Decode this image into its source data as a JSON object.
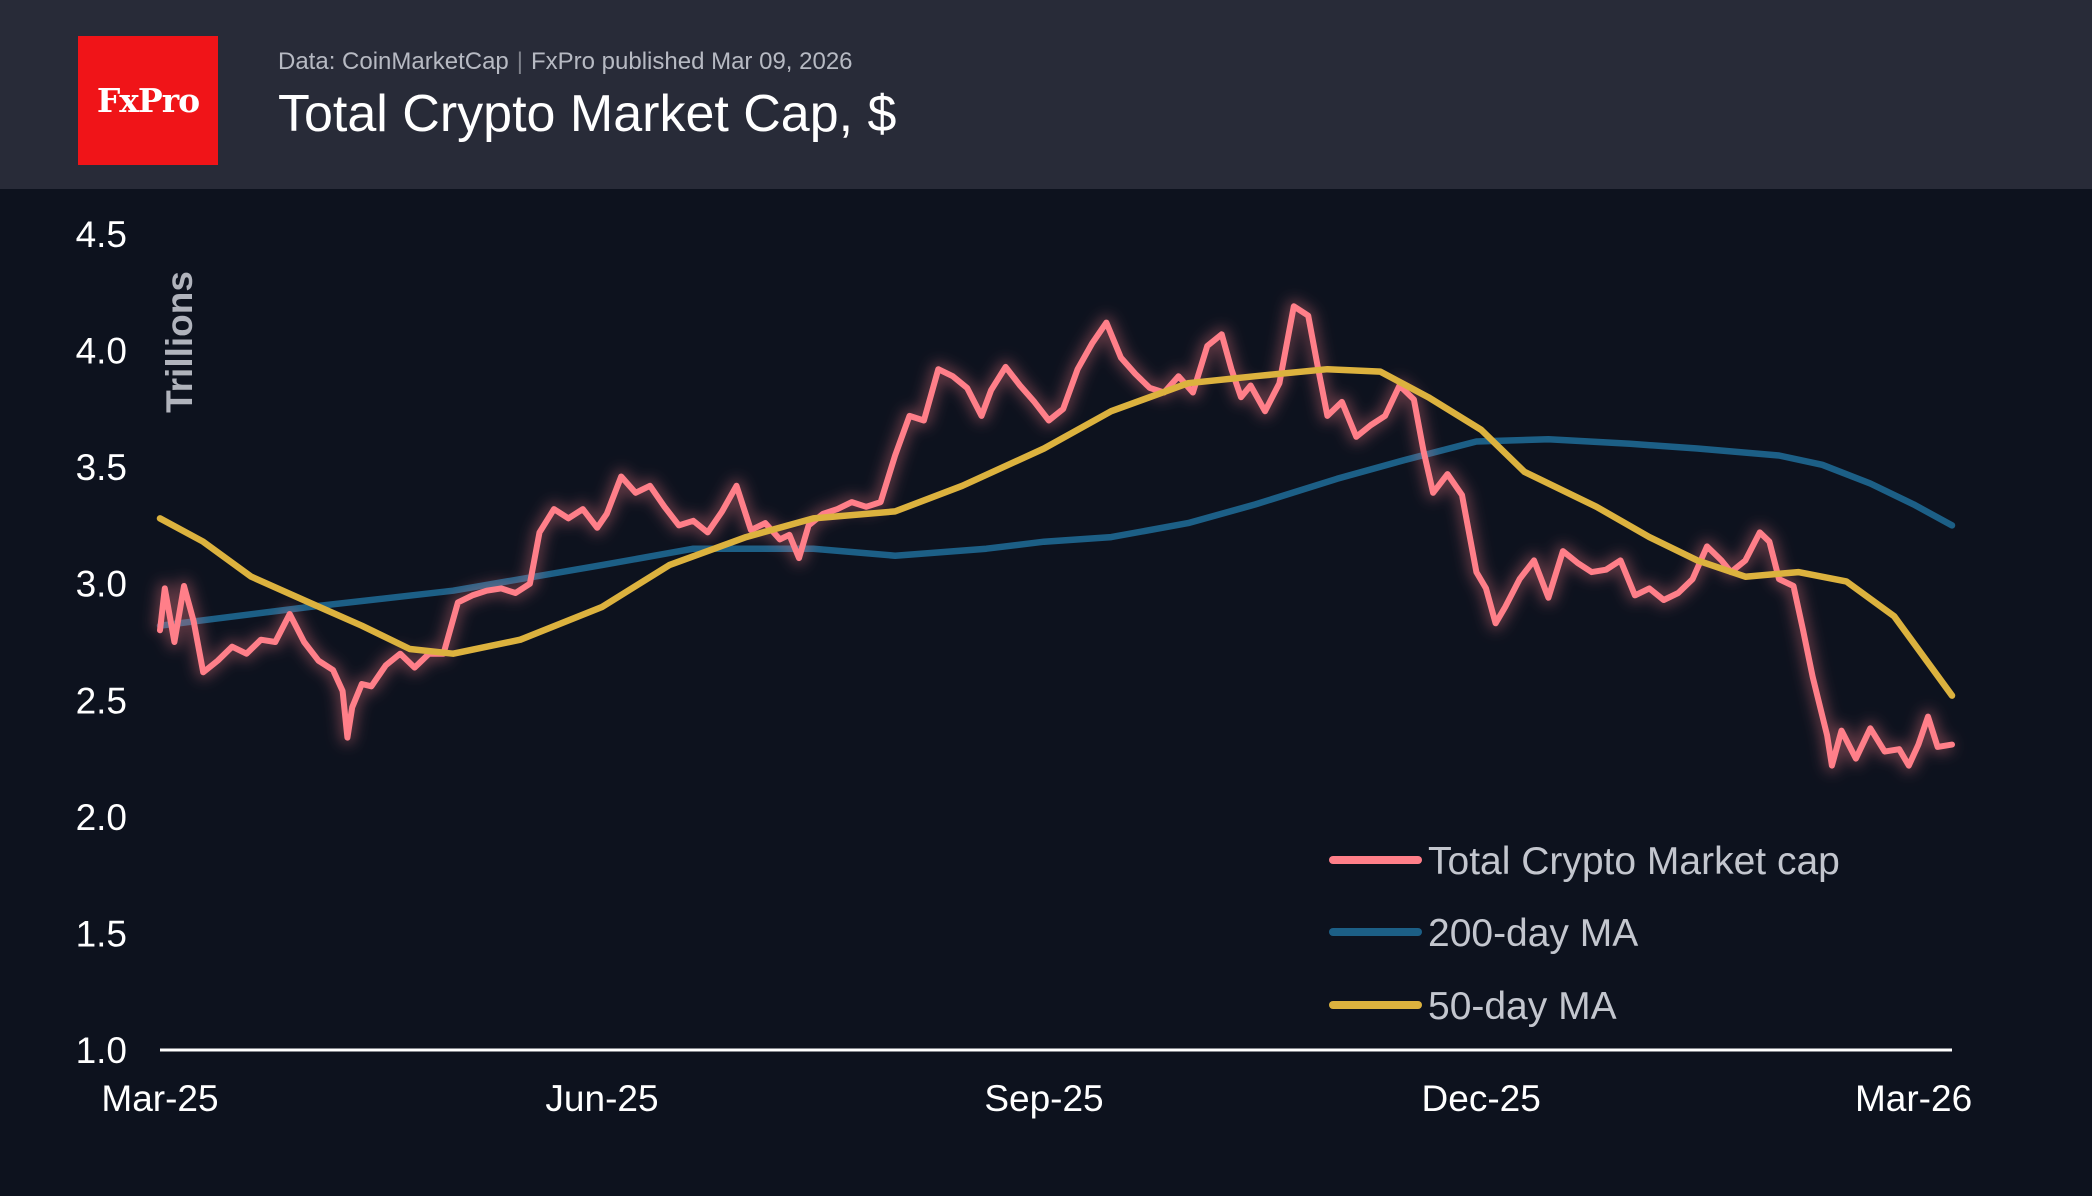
{
  "header": {
    "source": "Data: CoinMarketCap",
    "publisher": "FxPro published Mar 09, 2026",
    "title": "Total Crypto Market Cap, $",
    "logo_text": "FxPro"
  },
  "colors": {
    "background": "#0d121e",
    "header": "#282b38",
    "logo": "#f01418",
    "market_cap": "#ff7f89",
    "ma200": "#1c5f86",
    "ma50": "#dcb23e"
  },
  "chart_data": {
    "type": "line",
    "title": "Total Crypto Market Cap, $",
    "ylabel": "Trillions",
    "xlabel": "",
    "ylim": [
      1.0,
      4.5
    ],
    "xlim": [
      "2025-03-01",
      "2026-03-09"
    ],
    "yticks": [
      "1.0",
      "1.5",
      "2.0",
      "2.5",
      "3.0",
      "3.5",
      "4.0",
      "4.5"
    ],
    "xticks": [
      {
        "date": "2025-03-01",
        "label": "Mar-25"
      },
      {
        "date": "2025-06-01",
        "label": "Jun-25"
      },
      {
        "date": "2025-09-01",
        "label": "Sep-25"
      },
      {
        "date": "2025-12-01",
        "label": "Dec-25"
      },
      {
        "date": "2026-03-01",
        "label": "Mar-26"
      }
    ],
    "legend_position": "bottom-right",
    "series": [
      {
        "name": "Total Crypto Market cap",
        "color": "#ff7f89",
        "points": [
          [
            "2025-03-01",
            2.8
          ],
          [
            "2025-03-02",
            2.98
          ],
          [
            "2025-03-04",
            2.75
          ],
          [
            "2025-03-06",
            2.99
          ],
          [
            "2025-03-08",
            2.84
          ],
          [
            "2025-03-10",
            2.62
          ],
          [
            "2025-03-13",
            2.67
          ],
          [
            "2025-03-16",
            2.73
          ],
          [
            "2025-03-19",
            2.7
          ],
          [
            "2025-03-22",
            2.76
          ],
          [
            "2025-03-25",
            2.75
          ],
          [
            "2025-03-28",
            2.87
          ],
          [
            "2025-03-31",
            2.75
          ],
          [
            "2025-04-03",
            2.67
          ],
          [
            "2025-04-06",
            2.63
          ],
          [
            "2025-04-08",
            2.54
          ],
          [
            "2025-04-09",
            2.34
          ],
          [
            "2025-04-10",
            2.47
          ],
          [
            "2025-04-12",
            2.57
          ],
          [
            "2025-04-14",
            2.56
          ],
          [
            "2025-04-17",
            2.65
          ],
          [
            "2025-04-20",
            2.7
          ],
          [
            "2025-04-23",
            2.64
          ],
          [
            "2025-04-26",
            2.7
          ],
          [
            "2025-04-29",
            2.7
          ],
          [
            "2025-05-02",
            2.92
          ],
          [
            "2025-05-05",
            2.95
          ],
          [
            "2025-05-08",
            2.97
          ],
          [
            "2025-05-11",
            2.98
          ],
          [
            "2025-05-14",
            2.96
          ],
          [
            "2025-05-17",
            3.0
          ],
          [
            "2025-05-19",
            3.22
          ],
          [
            "2025-05-22",
            3.32
          ],
          [
            "2025-05-25",
            3.28
          ],
          [
            "2025-05-28",
            3.32
          ],
          [
            "2025-05-31",
            3.24
          ],
          [
            "2025-06-02",
            3.3
          ],
          [
            "2025-06-05",
            3.46
          ],
          [
            "2025-06-08",
            3.39
          ],
          [
            "2025-06-11",
            3.42
          ],
          [
            "2025-06-14",
            3.33
          ],
          [
            "2025-06-17",
            3.25
          ],
          [
            "2025-06-20",
            3.27
          ],
          [
            "2025-06-23",
            3.22
          ],
          [
            "2025-06-26",
            3.31
          ],
          [
            "2025-06-29",
            3.42
          ],
          [
            "2025-07-02",
            3.23
          ],
          [
            "2025-07-05",
            3.26
          ],
          [
            "2025-07-08",
            3.19
          ],
          [
            "2025-07-10",
            3.21
          ],
          [
            "2025-07-12",
            3.11
          ],
          [
            "2025-07-14",
            3.25
          ],
          [
            "2025-07-17",
            3.3
          ],
          [
            "2025-07-20",
            3.32
          ],
          [
            "2025-07-23",
            3.35
          ],
          [
            "2025-07-26",
            3.33
          ],
          [
            "2025-07-29",
            3.35
          ],
          [
            "2025-08-01",
            3.55
          ],
          [
            "2025-08-04",
            3.72
          ],
          [
            "2025-08-07",
            3.7
          ],
          [
            "2025-08-10",
            3.92
          ],
          [
            "2025-08-13",
            3.89
          ],
          [
            "2025-08-16",
            3.84
          ],
          [
            "2025-08-19",
            3.72
          ],
          [
            "2025-08-21",
            3.83
          ],
          [
            "2025-08-24",
            3.93
          ],
          [
            "2025-08-27",
            3.85
          ],
          [
            "2025-08-30",
            3.78
          ],
          [
            "2025-09-02",
            3.7
          ],
          [
            "2025-09-05",
            3.75
          ],
          [
            "2025-09-08",
            3.92
          ],
          [
            "2025-09-11",
            4.03
          ],
          [
            "2025-09-14",
            4.12
          ],
          [
            "2025-09-17",
            3.97
          ],
          [
            "2025-09-20",
            3.9
          ],
          [
            "2025-09-23",
            3.84
          ],
          [
            "2025-09-26",
            3.82
          ],
          [
            "2025-09-29",
            3.89
          ],
          [
            "2025-10-02",
            3.82
          ],
          [
            "2025-10-05",
            4.02
          ],
          [
            "2025-10-08",
            4.07
          ],
          [
            "2025-10-10",
            3.92
          ],
          [
            "2025-10-12",
            3.8
          ],
          [
            "2025-10-14",
            3.85
          ],
          [
            "2025-10-17",
            3.74
          ],
          [
            "2025-10-20",
            3.86
          ],
          [
            "2025-10-23",
            4.19
          ],
          [
            "2025-10-26",
            4.15
          ],
          [
            "2025-10-28",
            3.93
          ],
          [
            "2025-10-30",
            3.72
          ],
          [
            "2025-11-02",
            3.78
          ],
          [
            "2025-11-05",
            3.63
          ],
          [
            "2025-11-08",
            3.68
          ],
          [
            "2025-11-11",
            3.72
          ],
          [
            "2025-11-14",
            3.85
          ],
          [
            "2025-11-17",
            3.79
          ],
          [
            "2025-11-19",
            3.57
          ],
          [
            "2025-11-21",
            3.39
          ],
          [
            "2025-11-24",
            3.47
          ],
          [
            "2025-11-27",
            3.38
          ],
          [
            "2025-11-30",
            3.05
          ],
          [
            "2025-12-02",
            2.98
          ],
          [
            "2025-12-04",
            2.83
          ],
          [
            "2025-12-06",
            2.9
          ],
          [
            "2025-12-09",
            3.02
          ],
          [
            "2025-12-12",
            3.1
          ],
          [
            "2025-12-15",
            2.94
          ],
          [
            "2025-12-18",
            3.14
          ],
          [
            "2025-12-21",
            3.09
          ],
          [
            "2025-12-24",
            3.05
          ],
          [
            "2025-12-27",
            3.06
          ],
          [
            "2025-12-30",
            3.1
          ],
          [
            "2026-01-02",
            2.95
          ],
          [
            "2026-01-05",
            2.98
          ],
          [
            "2026-01-08",
            2.93
          ],
          [
            "2026-01-11",
            2.96
          ],
          [
            "2026-01-14",
            3.02
          ],
          [
            "2026-01-17",
            3.16
          ],
          [
            "2026-01-20",
            3.1
          ],
          [
            "2026-01-22",
            3.05
          ],
          [
            "2026-01-25",
            3.1
          ],
          [
            "2026-01-28",
            3.22
          ],
          [
            "2026-01-30",
            3.18
          ],
          [
            "2026-02-01",
            3.02
          ],
          [
            "2026-02-04",
            2.99
          ],
          [
            "2026-02-06",
            2.8
          ],
          [
            "2026-02-08",
            2.6
          ],
          [
            "2026-02-11",
            2.35
          ],
          [
            "2026-02-12",
            2.22
          ],
          [
            "2026-02-14",
            2.37
          ],
          [
            "2026-02-17",
            2.25
          ],
          [
            "2026-02-20",
            2.38
          ],
          [
            "2026-02-23",
            2.28
          ],
          [
            "2026-02-26",
            2.29
          ],
          [
            "2026-02-28",
            2.22
          ],
          [
            "2026-03-02",
            2.31
          ],
          [
            "2026-03-04",
            2.43
          ],
          [
            "2026-03-06",
            2.3
          ],
          [
            "2026-03-09",
            2.31
          ]
        ]
      },
      {
        "name": "200-day MA",
        "color": "#1c5f86",
        "points": [
          [
            "2025-03-01",
            2.82
          ],
          [
            "2025-04-01",
            2.9
          ],
          [
            "2025-05-01",
            2.97
          ],
          [
            "2025-06-01",
            3.08
          ],
          [
            "2025-06-20",
            3.15
          ],
          [
            "2025-07-15",
            3.15
          ],
          [
            "2025-08-01",
            3.12
          ],
          [
            "2025-08-20",
            3.15
          ],
          [
            "2025-09-01",
            3.18
          ],
          [
            "2025-09-15",
            3.2
          ],
          [
            "2025-10-01",
            3.26
          ],
          [
            "2025-10-15",
            3.34
          ],
          [
            "2025-11-01",
            3.45
          ],
          [
            "2025-11-15",
            3.53
          ],
          [
            "2025-11-30",
            3.61
          ],
          [
            "2025-12-15",
            3.62
          ],
          [
            "2026-01-01",
            3.6
          ],
          [
            "2026-01-15",
            3.58
          ],
          [
            "2026-02-01",
            3.55
          ],
          [
            "2026-02-10",
            3.51
          ],
          [
            "2026-02-20",
            3.43
          ],
          [
            "2026-03-01",
            3.34
          ],
          [
            "2026-03-09",
            3.25
          ]
        ]
      },
      {
        "name": "50-day MA",
        "color": "#dcb23e",
        "points": [
          [
            "2025-03-01",
            3.28
          ],
          [
            "2025-03-10",
            3.18
          ],
          [
            "2025-03-20",
            3.03
          ],
          [
            "2025-04-01",
            2.92
          ],
          [
            "2025-04-12",
            2.82
          ],
          [
            "2025-04-22",
            2.72
          ],
          [
            "2025-05-01",
            2.7
          ],
          [
            "2025-05-15",
            2.76
          ],
          [
            "2025-06-01",
            2.9
          ],
          [
            "2025-06-15",
            3.08
          ],
          [
            "2025-07-01",
            3.2
          ],
          [
            "2025-07-15",
            3.28
          ],
          [
            "2025-08-01",
            3.31
          ],
          [
            "2025-08-15",
            3.42
          ],
          [
            "2025-09-01",
            3.58
          ],
          [
            "2025-09-15",
            3.74
          ],
          [
            "2025-10-01",
            3.86
          ],
          [
            "2025-10-15",
            3.89
          ],
          [
            "2025-10-30",
            3.92
          ],
          [
            "2025-11-10",
            3.91
          ],
          [
            "2025-11-20",
            3.8
          ],
          [
            "2025-12-01",
            3.66
          ],
          [
            "2025-12-10",
            3.48
          ],
          [
            "2025-12-25",
            3.33
          ],
          [
            "2026-01-05",
            3.2
          ],
          [
            "2026-01-15",
            3.1
          ],
          [
            "2026-01-25",
            3.03
          ],
          [
            "2026-02-05",
            3.05
          ],
          [
            "2026-02-15",
            3.01
          ],
          [
            "2026-02-25",
            2.86
          ],
          [
            "2026-03-09",
            2.52
          ]
        ]
      }
    ]
  }
}
